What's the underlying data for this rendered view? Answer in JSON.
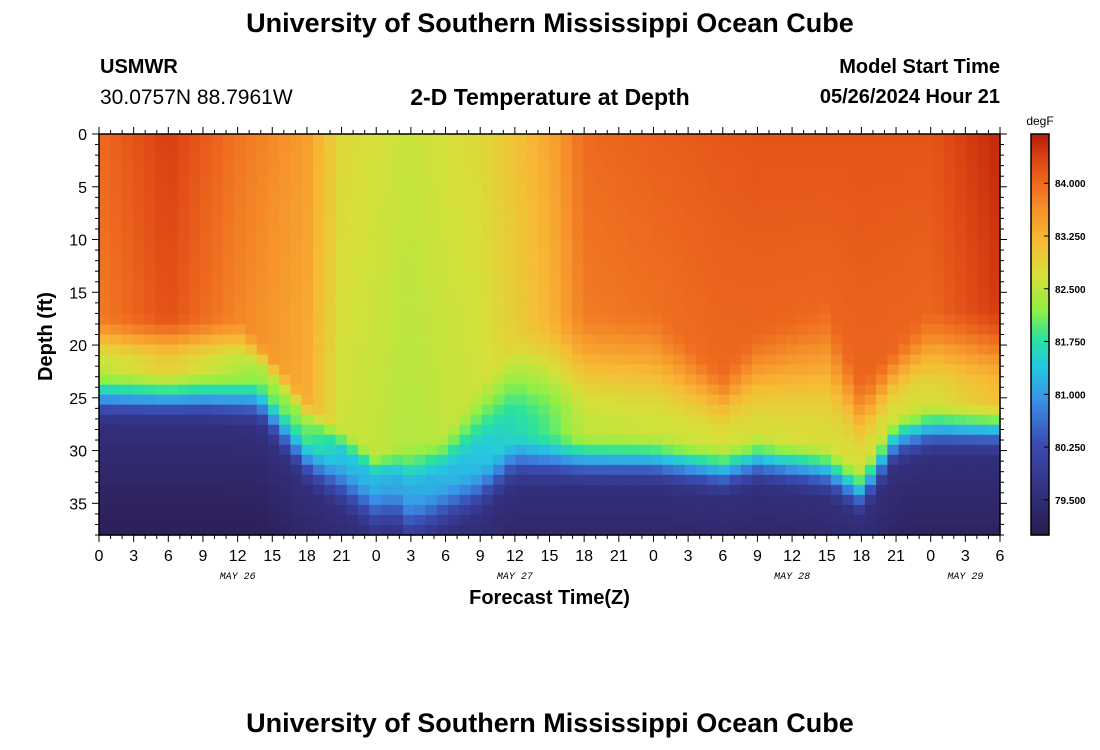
{
  "header": {
    "title": "University of Southern Mississippi Ocean Cube",
    "station": "USMWR",
    "coords": "30.0757N  88.7961W",
    "subtitle": "2-D Temperature at Depth",
    "start_label": "Model Start Time",
    "start_value": "05/26/2024 Hour 21"
  },
  "footer": {
    "title": "University of Southern Mississippi Ocean Cube"
  },
  "chart_data": {
    "type": "heatmap",
    "title": "2-D Temperature at Depth",
    "xlabel": "Forecast Time(Z)",
    "ylabel": "Depth (ft)",
    "x_unit": "hours since May 26 00Z",
    "xlim": [
      0,
      78
    ],
    "ylim": [
      0,
      38
    ],
    "x_ticks": [
      {
        "h": 0,
        "label": "0"
      },
      {
        "h": 3,
        "label": "3"
      },
      {
        "h": 6,
        "label": "6"
      },
      {
        "h": 9,
        "label": "9"
      },
      {
        "h": 12,
        "label": "12"
      },
      {
        "h": 15,
        "label": "15"
      },
      {
        "h": 18,
        "label": "18"
      },
      {
        "h": 21,
        "label": "21"
      },
      {
        "h": 24,
        "label": "0"
      },
      {
        "h": 27,
        "label": "3"
      },
      {
        "h": 30,
        "label": "6"
      },
      {
        "h": 33,
        "label": "9"
      },
      {
        "h": 36,
        "label": "12"
      },
      {
        "h": 39,
        "label": "15"
      },
      {
        "h": 42,
        "label": "18"
      },
      {
        "h": 45,
        "label": "21"
      },
      {
        "h": 48,
        "label": "0"
      },
      {
        "h": 51,
        "label": "3"
      },
      {
        "h": 54,
        "label": "6"
      },
      {
        "h": 57,
        "label": "9"
      },
      {
        "h": 60,
        "label": "12"
      },
      {
        "h": 63,
        "label": "15"
      },
      {
        "h": 66,
        "label": "18"
      },
      {
        "h": 69,
        "label": "21"
      },
      {
        "h": 72,
        "label": "0"
      },
      {
        "h": 75,
        "label": "3"
      },
      {
        "h": 78,
        "label": "6"
      }
    ],
    "date_labels": [
      {
        "h": 12,
        "label": "MAY 26"
      },
      {
        "h": 36,
        "label": "MAY 27"
      },
      {
        "h": 60,
        "label": "MAY 28"
      },
      {
        "h": 75,
        "label": "MAY 29"
      }
    ],
    "y_ticks": [
      0,
      5,
      10,
      15,
      20,
      25,
      30,
      35
    ],
    "colorbar": {
      "unit": "degF",
      "min": 79.0,
      "max": 84.7,
      "ticks": [
        "79.500",
        "80.250",
        "81.000",
        "81.750",
        "82.500",
        "83.250",
        "84.000"
      ],
      "tick_values": [
        79.5,
        80.25,
        81.0,
        81.75,
        82.5,
        83.25,
        84.0
      ],
      "stops": [
        {
          "v": 79.0,
          "c": "#2c1a4a"
        },
        {
          "v": 79.6,
          "c": "#33307e"
        },
        {
          "v": 80.3,
          "c": "#3a4bb0"
        },
        {
          "v": 80.9,
          "c": "#3b8ee6"
        },
        {
          "v": 81.4,
          "c": "#25c7e0"
        },
        {
          "v": 81.8,
          "c": "#2be29c"
        },
        {
          "v": 82.2,
          "c": "#8ef046"
        },
        {
          "v": 82.7,
          "c": "#d6e03a"
        },
        {
          "v": 83.2,
          "c": "#f7ba35"
        },
        {
          "v": 83.6,
          "c": "#f6952b"
        },
        {
          "v": 84.0,
          "c": "#ee6a1f"
        },
        {
          "v": 84.3,
          "c": "#e04a15"
        },
        {
          "v": 84.7,
          "c": "#b61e08"
        }
      ]
    },
    "surface_temp_degF": [
      {
        "h": 0,
        "v": 84.0
      },
      {
        "h": 6,
        "v": 84.4
      },
      {
        "h": 12,
        "v": 83.9
      },
      {
        "h": 18,
        "v": 83.5
      },
      {
        "h": 21,
        "v": 82.8
      },
      {
        "h": 27,
        "v": 82.6
      },
      {
        "h": 33,
        "v": 82.8
      },
      {
        "h": 39,
        "v": 83.4
      },
      {
        "h": 42,
        "v": 84.0
      },
      {
        "h": 48,
        "v": 84.1
      },
      {
        "h": 57,
        "v": 84.2
      },
      {
        "h": 66,
        "v": 84.2
      },
      {
        "h": 72,
        "v": 84.2
      },
      {
        "h": 78,
        "v": 84.6
      }
    ],
    "mixed_layer_depth_ft": [
      {
        "h": 0,
        "v": 17
      },
      {
        "h": 6,
        "v": 17
      },
      {
        "h": 12,
        "v": 17
      },
      {
        "h": 18,
        "v": 25
      },
      {
        "h": 24,
        "v": 30
      },
      {
        "h": 30,
        "v": 28
      },
      {
        "h": 36,
        "v": 18
      },
      {
        "h": 42,
        "v": 16
      },
      {
        "h": 48,
        "v": 16
      },
      {
        "h": 54,
        "v": 22
      },
      {
        "h": 57,
        "v": 18
      },
      {
        "h": 63,
        "v": 15
      },
      {
        "h": 66,
        "v": 23
      },
      {
        "h": 72,
        "v": 16
      },
      {
        "h": 78,
        "v": 16
      }
    ],
    "thermocline_depth_ft": [
      {
        "h": 0,
        "v": 22
      },
      {
        "h": 9,
        "v": 22
      },
      {
        "h": 15,
        "v": 22.5
      },
      {
        "h": 21,
        "v": 28
      },
      {
        "h": 27,
        "v": 34
      },
      {
        "h": 33,
        "v": 31
      },
      {
        "h": 36,
        "v": 28
      },
      {
        "h": 42,
        "v": 28
      },
      {
        "h": 48,
        "v": 28
      },
      {
        "h": 54,
        "v": 29
      },
      {
        "h": 57,
        "v": 28
      },
      {
        "h": 63,
        "v": 29
      },
      {
        "h": 66,
        "v": 31
      },
      {
        "h": 69,
        "v": 26
      },
      {
        "h": 72,
        "v": 25
      },
      {
        "h": 78,
        "v": 25
      }
    ],
    "bottom_temp_degF": 79.2
  }
}
